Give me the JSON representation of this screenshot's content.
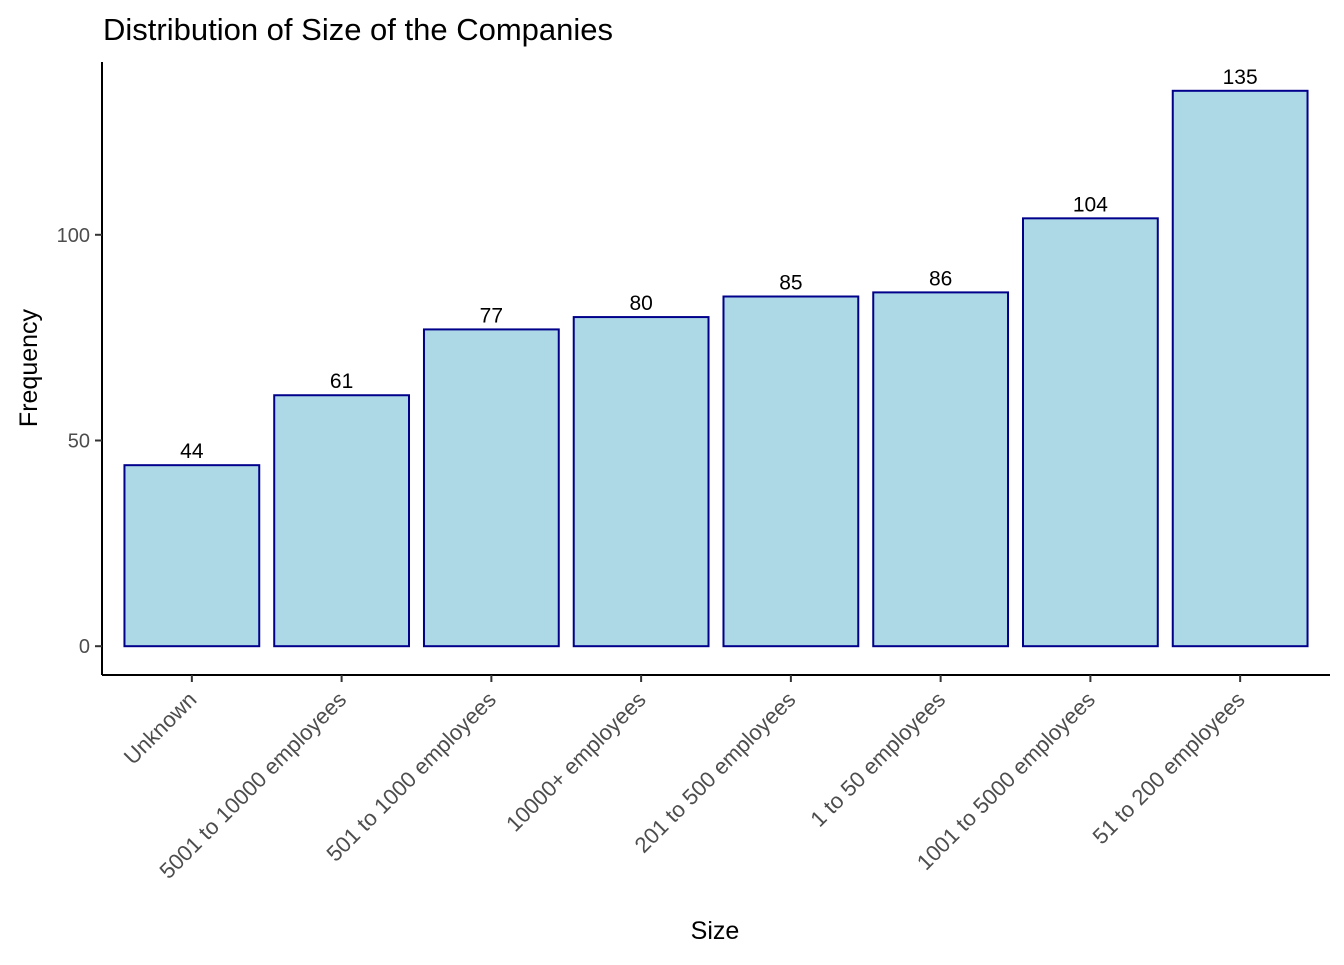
{
  "chart_data": {
    "type": "bar",
    "title": "Distribution of Size of the Companies",
    "xlabel": "Size",
    "ylabel": "Frequency",
    "categories": [
      "Unknown",
      "5001 to 10000 employees",
      "501 to 1000 employees",
      "10000+ employees",
      "201 to 500 employees",
      "1 to 50 employees",
      "1001 to 5000 employees",
      "51 to 200 employees"
    ],
    "values": [
      44,
      61,
      77,
      80,
      85,
      86,
      104,
      135
    ],
    "ylim": [
      -7,
      142
    ],
    "yticks": [
      0,
      50,
      100
    ],
    "grid": false,
    "legend": "none",
    "bar_fill": "#add8e6",
    "bar_stroke": "#00008b"
  }
}
